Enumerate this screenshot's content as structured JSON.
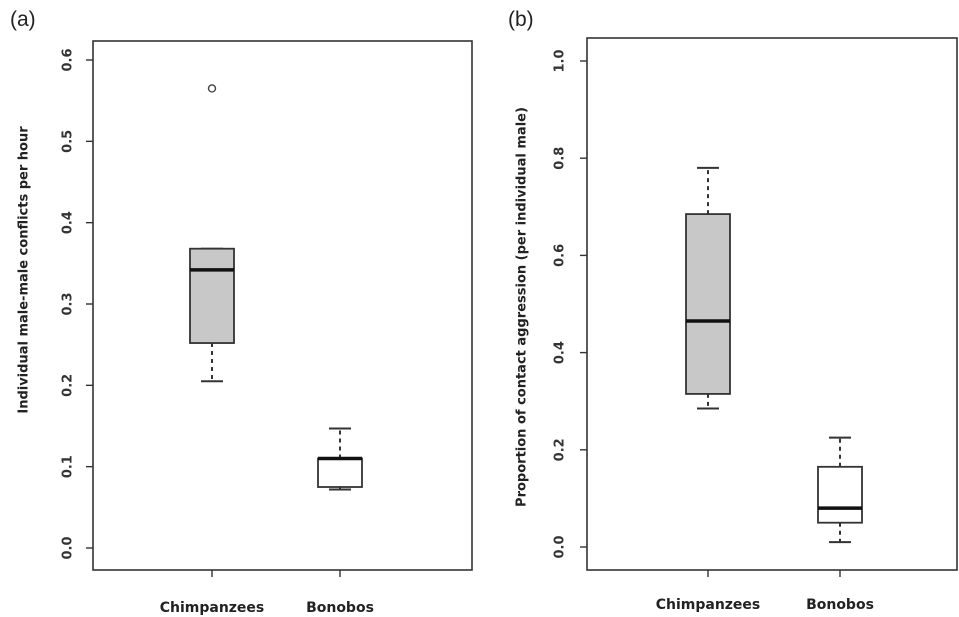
{
  "chart_data": [
    {
      "type": "box",
      "panel": "(a)",
      "title": "",
      "xlabel": "",
      "ylabel": "Individual male-male conflicts per hour",
      "categories": [
        "Chimpanzees",
        "Bonobos"
      ],
      "ylim": [
        0.0,
        0.6
      ],
      "yticks": [
        "0.0",
        "0.1",
        "0.2",
        "0.3",
        "0.4",
        "0.5",
        "0.6"
      ],
      "boxes": [
        {
          "whisker_low": 0.205,
          "q1": 0.252,
          "median": 0.342,
          "q3": 0.368,
          "whisker_high": 0.368,
          "outliers": [
            0.565
          ],
          "fill": "#c8c8c8"
        },
        {
          "whisker_low": 0.072,
          "q1": 0.075,
          "median": 0.11,
          "q3": 0.11,
          "whisker_high": 0.147,
          "outliers": [],
          "fill": "#ffffff"
        }
      ]
    },
    {
      "type": "box",
      "panel": "(b)",
      "title": "",
      "xlabel": "",
      "ylabel": "Proportion of contact aggression (per individual male)",
      "categories": [
        "Chimpanzees",
        "Bonobos"
      ],
      "ylim": [
        0.0,
        1.0
      ],
      "yticks": [
        "0.0",
        "0.2",
        "0.4",
        "0.6",
        "0.8",
        "1.0"
      ],
      "boxes": [
        {
          "whisker_low": 0.285,
          "q1": 0.315,
          "median": 0.465,
          "q3": 0.685,
          "whisker_high": 0.78,
          "outliers": [],
          "fill": "#c8c8c8"
        },
        {
          "whisker_low": 0.01,
          "q1": 0.05,
          "median": 0.08,
          "q3": 0.165,
          "whisker_high": 0.225,
          "outliers": [],
          "fill": "#ffffff"
        }
      ]
    }
  ]
}
